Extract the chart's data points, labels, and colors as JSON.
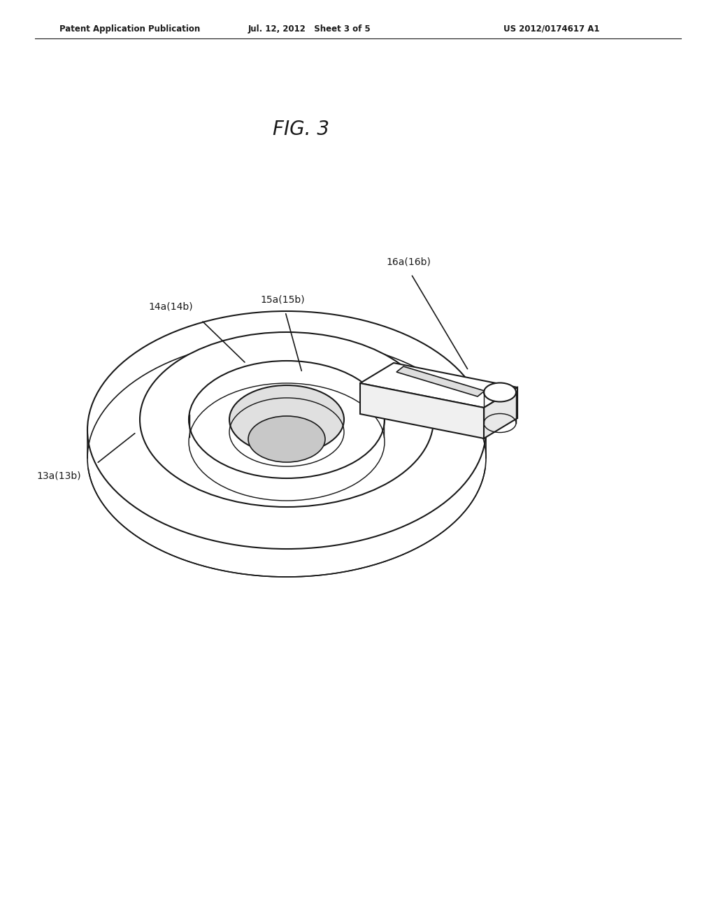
{
  "bg_color": "#ffffff",
  "header_left": "Patent Application Publication",
  "header_mid": "Jul. 12, 2012   Sheet 3 of 5",
  "header_right": "US 2012/0174617 A1",
  "fig_label": "FIG. 3",
  "label_13": "13a(13b)",
  "label_14": "14a(14b)",
  "label_15": "15a(15b)",
  "label_16": "16a(16b)",
  "line_color": "#1a1a1a",
  "line_width": 1.5
}
